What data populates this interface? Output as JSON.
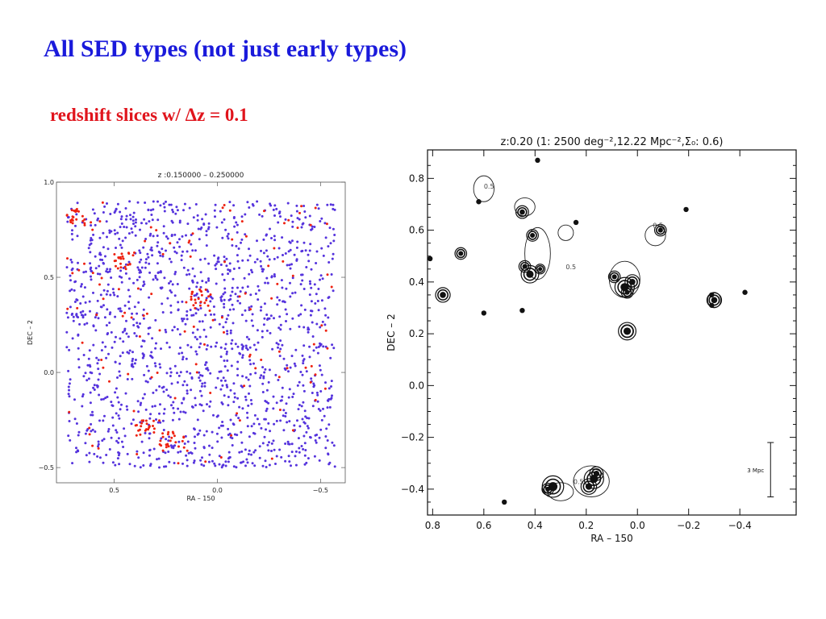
{
  "slide": {
    "title": "All SED types (not just early types)",
    "subtitle": "redshift slices w/ Δz = 0.1"
  },
  "chart_data": [
    {
      "type": "scatter",
      "title": "z :0.150000 – 0.250000",
      "xlabel": "RA – 150",
      "ylabel": "DEC – 2",
      "xlim": [
        0.78,
        -0.62
      ],
      "ylim": [
        -0.58,
        1.0
      ],
      "xticks": [
        0.5,
        0.0,
        -0.5
      ],
      "xtick_labels": [
        "0.5",
        "0.0",
        "−0.5"
      ],
      "yticks": [
        -0.5,
        0.0,
        0.5,
        1.0
      ],
      "ytick_labels": [
        "−0.5",
        "0.0",
        "0.5",
        "1.0"
      ],
      "grid": false,
      "series": [
        {
          "color": "#5533dd",
          "count_approx": 1500,
          "extent": {
            "x": [
              0.73,
              -0.57
            ],
            "y": [
              -0.5,
              0.9
            ]
          }
        },
        {
          "color": "#ee2211",
          "count_approx": 230,
          "clumps": [
            {
              "x": 0.22,
              "y": -0.36
            },
            {
              "x": 0.08,
              "y": 0.4
            },
            {
              "x": 0.45,
              "y": 0.58
            },
            {
              "x": 0.68,
              "y": 0.82
            },
            {
              "x": 0.35,
              "y": -0.3
            }
          ]
        }
      ]
    },
    {
      "type": "contour",
      "title": "z:0.20 (1: 2500 deg⁻²,12.22 Mpc⁻²,Σ₀:  0.6)",
      "xlabel": "RA – 150",
      "ylabel": "DEC – 2",
      "xlim": [
        0.82,
        -0.62
      ],
      "ylim": [
        -0.5,
        0.91
      ],
      "xticks": [
        0.8,
        0.6,
        0.4,
        0.2,
        0.0,
        -0.2,
        -0.4
      ],
      "xtick_labels": [
        "0.8",
        "0.6",
        "0.4",
        "0.2",
        "0.0",
        "−0.2",
        "−0.4"
      ],
      "yticks": [
        -0.4,
        -0.2,
        0.0,
        0.2,
        0.4,
        0.6,
        0.8
      ],
      "ytick_labels": [
        "−0.4",
        "−0.2",
        "0.0",
        "0.2",
        "0.4",
        "0.6",
        "0.8"
      ],
      "contour_label": "0.5",
      "scale_bar": {
        "label": "3 Mpc",
        "x": -0.52,
        "y_range": [
          -0.43,
          -0.22
        ]
      },
      "dense_contours": [
        {
          "x": 0.41,
          "y": 0.58,
          "r": 0.012
        },
        {
          "x": 0.42,
          "y": 0.43,
          "r": 0.018
        },
        {
          "x": 0.44,
          "y": 0.46,
          "r": 0.012
        },
        {
          "x": 0.38,
          "y": 0.45,
          "r": 0.01
        },
        {
          "x": 0.45,
          "y": 0.67,
          "r": 0.013
        },
        {
          "x": 0.69,
          "y": 0.51,
          "r": 0.012
        },
        {
          "x": 0.76,
          "y": 0.35,
          "r": 0.015
        },
        {
          "x": 0.05,
          "y": 0.38,
          "r": 0.02
        },
        {
          "x": 0.02,
          "y": 0.4,
          "r": 0.015
        },
        {
          "x": 0.09,
          "y": 0.42,
          "r": 0.012
        },
        {
          "x": 0.04,
          "y": 0.36,
          "r": 0.012
        },
        {
          "x": -0.09,
          "y": 0.6,
          "r": 0.012
        },
        {
          "x": -0.3,
          "y": 0.33,
          "r": 0.015
        },
        {
          "x": 0.04,
          "y": 0.21,
          "r": 0.018
        },
        {
          "x": 0.17,
          "y": -0.36,
          "r": 0.02
        },
        {
          "x": 0.19,
          "y": -0.39,
          "r": 0.016
        },
        {
          "x": 0.16,
          "y": -0.34,
          "r": 0.014
        },
        {
          "x": 0.33,
          "y": -0.39,
          "r": 0.022
        },
        {
          "x": 0.35,
          "y": -0.4,
          "r": 0.012
        }
      ],
      "small_features": [
        {
          "x": 0.81,
          "y": 0.49
        },
        {
          "x": 0.62,
          "y": 0.71
        },
        {
          "x": 0.39,
          "y": 0.87
        },
        {
          "x": 0.24,
          "y": 0.63
        },
        {
          "x": -0.19,
          "y": 0.68
        },
        {
          "x": -0.42,
          "y": 0.36
        },
        {
          "x": 0.6,
          "y": 0.28
        },
        {
          "x": 0.45,
          "y": 0.29
        },
        {
          "x": 0.52,
          "y": -0.45
        },
        {
          "x": -0.29,
          "y": 0.35
        },
        {
          "x": -0.29,
          "y": 0.31
        }
      ],
      "outer_contours": [
        {
          "cx": 0.6,
          "cy": 0.76,
          "rx": 0.04,
          "ry": 0.05
        },
        {
          "cx": 0.44,
          "cy": 0.69,
          "rx": 0.04,
          "ry": 0.035
        },
        {
          "cx": 0.39,
          "cy": 0.51,
          "rx": 0.05,
          "ry": 0.1
        },
        {
          "cx": 0.28,
          "cy": 0.59,
          "rx": 0.03,
          "ry": 0.03
        },
        {
          "cx": 0.05,
          "cy": 0.41,
          "rx": 0.06,
          "ry": 0.07
        },
        {
          "cx": -0.07,
          "cy": 0.58,
          "rx": 0.04,
          "ry": 0.04
        },
        {
          "cx": 0.04,
          "cy": 0.21,
          "rx": 0.025,
          "ry": 0.025
        },
        {
          "cx": 0.18,
          "cy": -0.37,
          "rx": 0.07,
          "ry": 0.06
        },
        {
          "cx": 0.3,
          "cy": -0.41,
          "rx": 0.05,
          "ry": 0.035
        },
        {
          "cx": -0.3,
          "cy": 0.33,
          "rx": 0.025,
          "ry": 0.03
        }
      ]
    }
  ]
}
